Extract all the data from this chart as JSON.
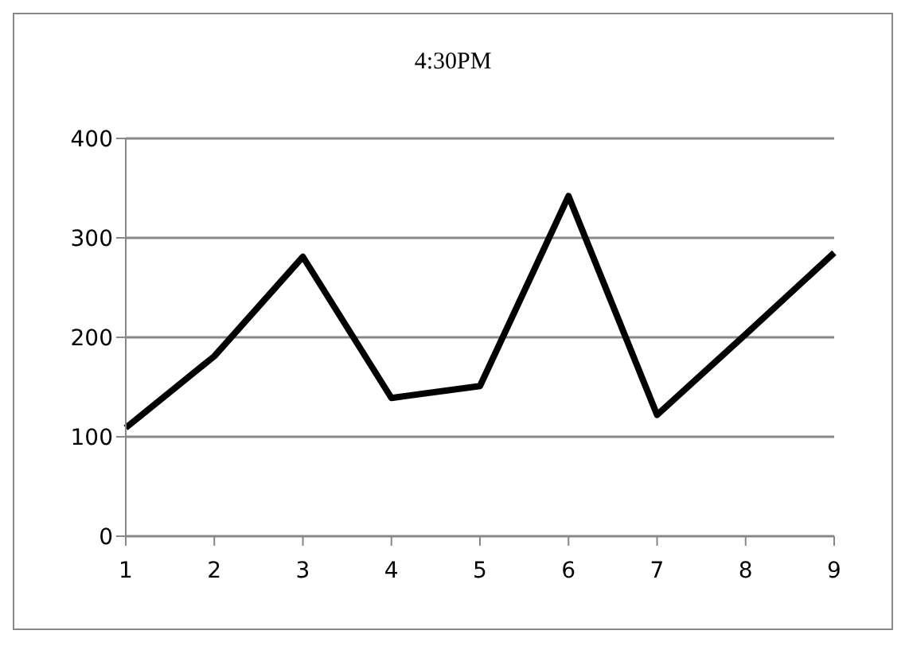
{
  "chart_data": {
    "type": "line",
    "title": "4:30PM",
    "categories": [
      "1",
      "2",
      "3",
      "4",
      "5",
      "6",
      "7",
      "8",
      "9"
    ],
    "series": [
      {
        "color": "#000000",
        "values": [
          109,
          181,
          281,
          139,
          151,
          342,
          122,
          203,
          285
        ]
      }
    ],
    "ylim": [
      0,
      400
    ],
    "yticks": [
      0,
      100,
      200,
      300,
      400
    ],
    "grid": "y",
    "legend": false,
    "marker": "none",
    "line_style": "solid"
  }
}
